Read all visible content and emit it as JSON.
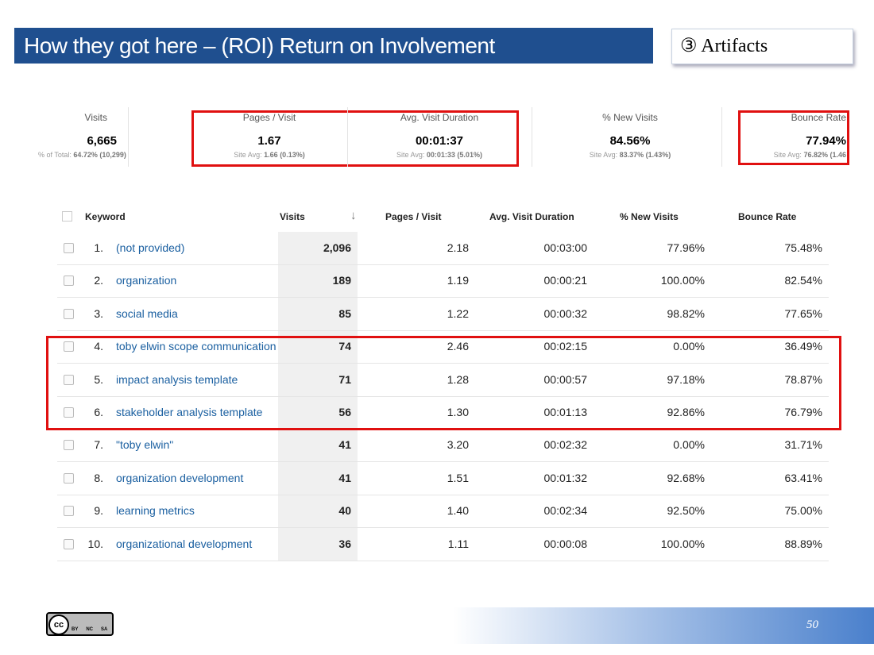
{
  "header": {
    "title": "How they got here – (ROI) Return on Involvement",
    "badge": "③  Artifacts"
  },
  "summary": [
    {
      "label": "Visits",
      "value": "6,665",
      "sub_label": "% of Total:",
      "sub_value": "64.72% (10,299)"
    },
    {
      "label": "Pages / Visit",
      "value": "1.67",
      "sub_label": "Site Avg:",
      "sub_value": "1.66 (0.13%)"
    },
    {
      "label": "Avg. Visit Duration",
      "value": "00:01:37",
      "sub_label": "Site Avg:",
      "sub_value": "00:01:33 (5.01%)"
    },
    {
      "label": "% New Visits",
      "value": "84.56%",
      "sub_label": "Site Avg:",
      "sub_value": "83.37% (1.43%)"
    },
    {
      "label": "Bounce Rate",
      "value": "77.94%",
      "sub_label": "Site Avg:",
      "sub_value": "76.82% (1.46"
    }
  ],
  "table": {
    "columns": [
      "Keyword",
      "Visits",
      "Pages / Visit",
      "Avg. Visit Duration",
      "% New Visits",
      "Bounce Rate"
    ],
    "rows": [
      [
        "1.",
        "(not provided)",
        "2,096",
        "2.18",
        "00:03:00",
        "77.96%",
        "75.48%"
      ],
      [
        "2.",
        "organization",
        "189",
        "1.19",
        "00:00:21",
        "100.00%",
        "82.54%"
      ],
      [
        "3.",
        "social media",
        "85",
        "1.22",
        "00:00:32",
        "98.82%",
        "77.65%"
      ],
      [
        "4.",
        "toby elwin scope communication",
        "74",
        "2.46",
        "00:02:15",
        "0.00%",
        "36.49%"
      ],
      [
        "5.",
        "impact analysis template",
        "71",
        "1.28",
        "00:00:57",
        "97.18%",
        "78.87%"
      ],
      [
        "6.",
        "stakeholder analysis template",
        "56",
        "1.30",
        "00:01:13",
        "92.86%",
        "76.79%"
      ],
      [
        "7.",
        "\"toby elwin\"",
        "41",
        "3.20",
        "00:02:32",
        "0.00%",
        "31.71%"
      ],
      [
        "8.",
        "organization development",
        "41",
        "1.51",
        "00:01:32",
        "92.68%",
        "63.41%"
      ],
      [
        "9.",
        "learning metrics",
        "40",
        "1.40",
        "00:02:34",
        "92.50%",
        "75.00%"
      ],
      [
        "10.",
        "organizational development",
        "36",
        "1.11",
        "00:00:08",
        "100.00%",
        "88.89%"
      ]
    ]
  },
  "license": [
    "BY",
    "NC",
    "SA"
  ],
  "page_number": "50"
}
